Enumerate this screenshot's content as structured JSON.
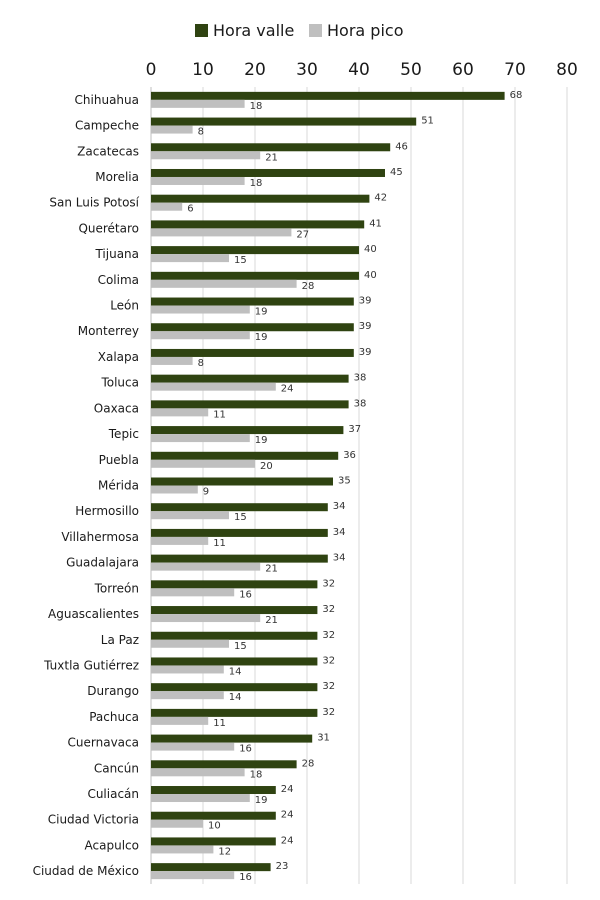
{
  "chart_data": {
    "type": "bar",
    "orientation": "horizontal",
    "legend": "top",
    "grid": true,
    "xlim": [
      0,
      80
    ],
    "ticks": [
      "0",
      "10",
      "20",
      "30",
      "40",
      "50",
      "60",
      "70",
      "80"
    ],
    "categories": [
      "Chihuahua",
      "Campeche",
      "Zacatecas",
      "Morelia",
      "San Luis Potosí",
      "Querétaro",
      "Tijuana",
      "Colima",
      "León",
      "Monterrey",
      "Xalapa",
      "Toluca",
      "Oaxaca",
      "Tepic",
      "Puebla",
      "Mérida",
      "Hermosillo",
      "Villahermosa",
      "Guadalajara",
      "Torreón",
      "Aguascalientes",
      "La Paz",
      "Tuxtla Gutiérrez",
      "Durango",
      "Pachuca",
      "Cuernavaca",
      "Cancún",
      "Culiacán",
      "Ciudad Victoria",
      "Acapulco",
      "Ciudad de México"
    ],
    "series": [
      {
        "name": "Hora valle",
        "color": "#2f4311",
        "values": [
          68,
          51,
          46,
          45,
          42,
          41,
          40,
          40,
          39,
          39,
          39,
          38,
          38,
          37,
          36,
          35,
          34,
          34,
          34,
          32,
          32,
          32,
          32,
          32,
          32,
          31,
          28,
          24,
          24,
          24,
          23
        ]
      },
      {
        "name": "Hora pico",
        "color": "#bfbfbf",
        "values": [
          18,
          8,
          21,
          18,
          6,
          27,
          15,
          28,
          19,
          19,
          8,
          24,
          11,
          19,
          20,
          9,
          15,
          11,
          21,
          16,
          21,
          15,
          14,
          14,
          11,
          16,
          18,
          19,
          10,
          12,
          16
        ]
      }
    ]
  }
}
